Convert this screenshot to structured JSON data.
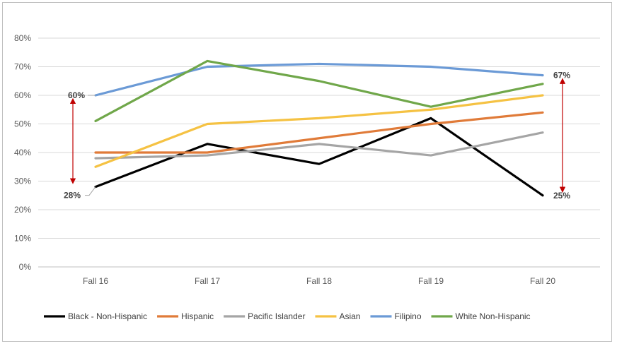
{
  "chart_data": {
    "type": "line",
    "categories": [
      "Fall 16",
      "Fall 17",
      "Fall 18",
      "Fall 19",
      "Fall 20"
    ],
    "ylim": [
      0,
      80
    ],
    "yticks": [
      "0%",
      "10%",
      "20%",
      "30%",
      "40%",
      "50%",
      "60%",
      "70%",
      "80%"
    ],
    "grid": true,
    "legend_position": "bottom",
    "series": [
      {
        "name": "Black - Non-Hispanic",
        "color": "#000000",
        "values": [
          28,
          43,
          36,
          52,
          25
        ]
      },
      {
        "name": "Hispanic",
        "color": "#e07b39",
        "values": [
          40,
          40,
          45,
          50,
          54
        ]
      },
      {
        "name": "Pacific Islander",
        "color": "#a5a5a5",
        "values": [
          38,
          39,
          43,
          39,
          47
        ]
      },
      {
        "name": "Asian",
        "color": "#f5c243",
        "values": [
          35,
          50,
          52,
          55,
          60
        ]
      },
      {
        "name": "Filipino",
        "color": "#6b9ad6",
        "values": [
          60,
          70,
          71,
          70,
          67
        ]
      },
      {
        "name": "White Non-Hispanic",
        "color": "#70a74a",
        "values": [
          51,
          72,
          65,
          56,
          64
        ]
      }
    ],
    "annotations": [
      {
        "text": "60%",
        "category": "Fall 16",
        "value": 60
      },
      {
        "text": "28%",
        "category": "Fall 16",
        "value": 28
      },
      {
        "text": "67%",
        "category": "Fall 20",
        "value": 67
      },
      {
        "text": "25%",
        "category": "Fall 20",
        "value": 25
      }
    ],
    "gap_arrows": [
      {
        "category": "Fall 16",
        "from": 28,
        "to": 60,
        "color": "#c00000"
      },
      {
        "category": "Fall 20",
        "from": 25,
        "to": 67,
        "color": "#c00000"
      }
    ]
  }
}
